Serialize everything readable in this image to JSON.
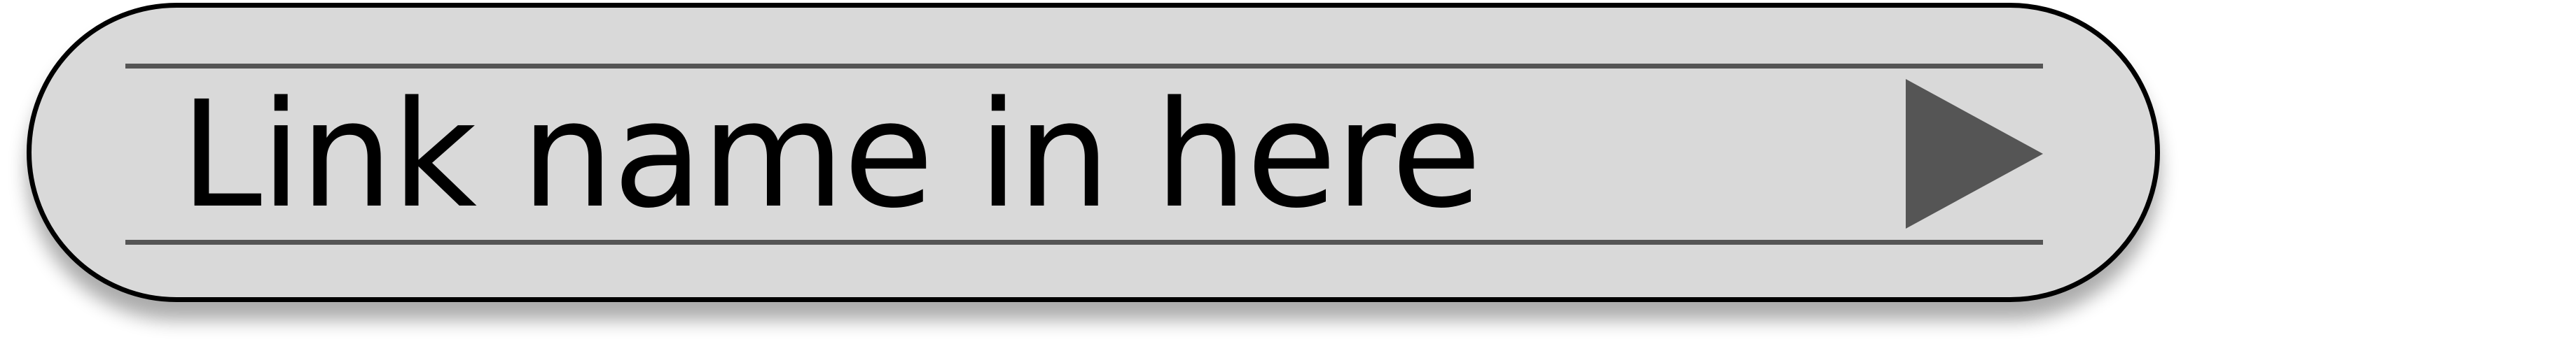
{
  "link_button": {
    "label": "Link name in here",
    "icon": "play-arrow-right-icon"
  },
  "colors": {
    "fill": "#d9d9d9",
    "border": "#000000",
    "rule": "#555555",
    "arrow": "#555555",
    "text": "#000000"
  }
}
